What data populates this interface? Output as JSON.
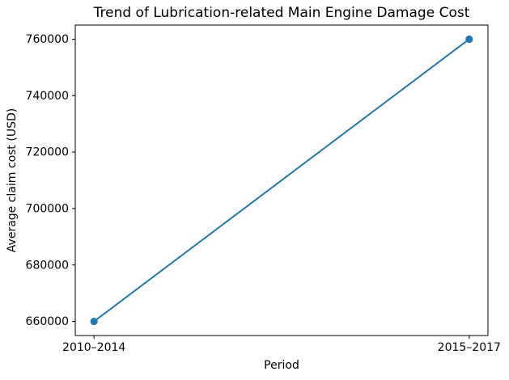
{
  "chart_data": {
    "type": "line",
    "title": "Trend of Lubrication-related Main Engine Damage Cost",
    "xlabel": "Period",
    "ylabel": "Average claim cost (USD)",
    "categories": [
      "2010–2014",
      "2015–2017"
    ],
    "series": [
      {
        "name": "Average claim cost",
        "values": [
          660000,
          760000
        ]
      }
    ],
    "yticks": [
      660000,
      680000,
      700000,
      720000,
      740000,
      760000
    ],
    "ylim": [
      655000,
      765000
    ],
    "grid": false,
    "legend_position": "none",
    "line_color": "#1f77b4",
    "marker": "circle",
    "spine_color": "#000000",
    "background_color": "#ffffff"
  }
}
